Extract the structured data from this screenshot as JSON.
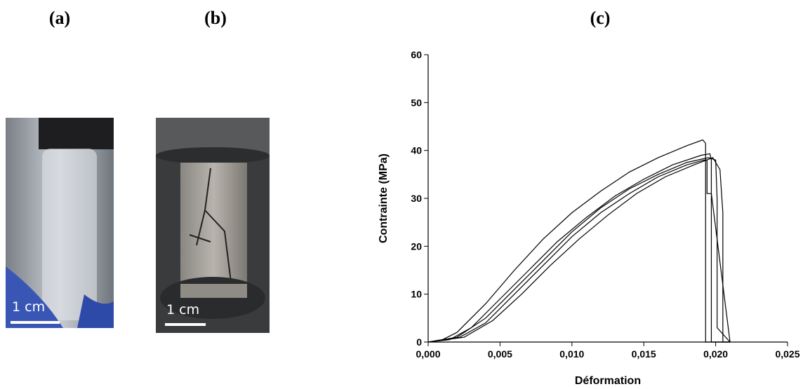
{
  "panels": [
    "(a)",
    "(b)",
    "(c)"
  ],
  "scale_bars": [
    "1 cm",
    "1 cm"
  ],
  "chart_data": {
    "type": "line",
    "xlabel": "Déformation",
    "ylabel": "Contrainte (MPa)",
    "xlim": [
      0,
      0.025
    ],
    "ylim": [
      0,
      60
    ],
    "xticks": [
      {
        "value": 0,
        "label": "0,000"
      },
      {
        "value": 0.005,
        "label": "0,005"
      },
      {
        "value": 0.01,
        "label": "0,010"
      },
      {
        "value": 0.015,
        "label": "0,015"
      },
      {
        "value": 0.02,
        "label": "0,020"
      },
      {
        "value": 0.025,
        "label": "0,025"
      }
    ],
    "yticks": [
      0,
      10,
      20,
      30,
      40,
      50,
      60
    ],
    "series": [
      {
        "color": "#000000",
        "x": [
          0,
          0.001,
          0.002,
          0.004,
          0.006,
          0.008,
          0.01,
          0.012,
          0.014,
          0.016,
          0.018,
          0.0191,
          0.0193,
          0.0193,
          0.021
        ],
        "values": [
          0,
          0.5,
          2,
          8,
          15,
          21.5,
          27,
          31.5,
          35.5,
          38.5,
          41,
          42.2,
          41.5,
          0,
          0
        ]
      },
      {
        "color": "#000000",
        "x": [
          0,
          0.0015,
          0.003,
          0.005,
          0.007,
          0.009,
          0.011,
          0.013,
          0.015,
          0.017,
          0.019,
          0.0196,
          0.0197,
          0.0197,
          0.021
        ],
        "values": [
          0,
          0.5,
          3,
          9,
          15,
          21,
          26,
          30.5,
          34,
          37,
          39,
          39.3,
          38,
          0,
          0
        ]
      },
      {
        "color": "#000000",
        "x": [
          0,
          0.002,
          0.004,
          0.006,
          0.008,
          0.01,
          0.012,
          0.014,
          0.016,
          0.018,
          0.0195,
          0.02,
          0.0201,
          0.0201,
          0.021
        ],
        "values": [
          0,
          1,
          5,
          11,
          17,
          23,
          28,
          32,
          35,
          37.5,
          38.5,
          38,
          30,
          3,
          0
        ]
      },
      {
        "color": "#000000",
        "x": [
          0,
          0.0025,
          0.0045,
          0.0065,
          0.0085,
          0.0105,
          0.0125,
          0.0145,
          0.0165,
          0.0185,
          0.0198,
          0.0203,
          0.0205,
          0.0205,
          0.021
        ],
        "values": [
          0,
          1,
          4.5,
          10,
          16,
          21.5,
          26.5,
          31,
          34.5,
          37,
          38.5,
          36,
          27,
          0,
          0
        ]
      },
      {
        "color": "#000000",
        "x": [
          0,
          0.0022,
          0.004,
          0.006,
          0.008,
          0.01,
          0.012,
          0.014,
          0.016,
          0.018,
          0.0192,
          0.0194,
          0.0194,
          0.0197,
          0.021
        ],
        "values": [
          0,
          1,
          4,
          10,
          16,
          22,
          27,
          31,
          34.5,
          37,
          38,
          38,
          31,
          31,
          0
        ]
      }
    ]
  }
}
